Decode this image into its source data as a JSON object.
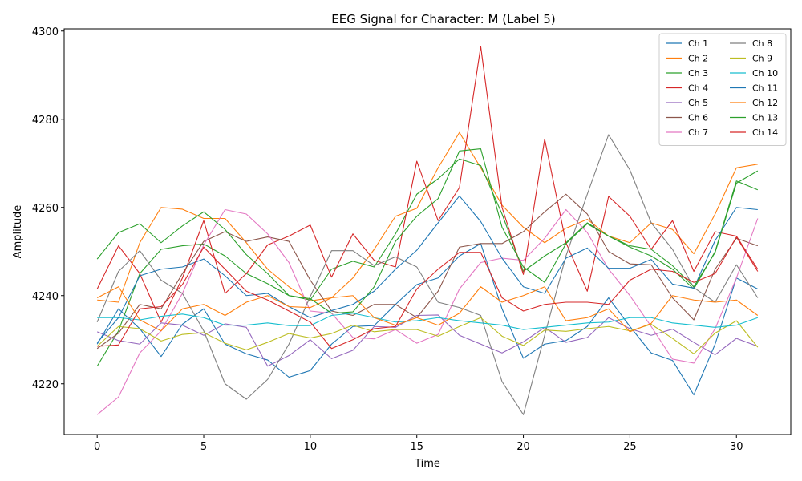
{
  "chart_data": {
    "type": "line",
    "title": "EEG Signal for Character: M (Label 5)",
    "xlabel": "Time",
    "ylabel": "Amplitude",
    "xlim": [
      -1.55,
      32.55
    ],
    "ylim": [
      4208.5,
      4300.5
    ],
    "xticks": [
      0,
      5,
      10,
      15,
      20,
      25,
      30
    ],
    "yticks": [
      4220,
      4240,
      4260,
      4280,
      4300
    ],
    "grid": false,
    "legend": {
      "position": "top-right",
      "columns": 2
    },
    "x": [
      0,
      1,
      2,
      3,
      4,
      5,
      6,
      7,
      8,
      9,
      10,
      11,
      12,
      13,
      14,
      15,
      16,
      17,
      18,
      19,
      20,
      21,
      22,
      23,
      24,
      25,
      26,
      27,
      28,
      29,
      30,
      31
    ],
    "series": [
      {
        "name": "Ch 1",
        "color": "#1f77b4",
        "values": [
          4229.0,
          4237.0,
          4232.5,
          4226.2,
          4233.5,
          4237.0,
          4229.0,
          4226.8,
          4225.4,
          4221.5,
          4223.0,
          4229.0,
          4233.0,
          4233.2,
          4238.0,
          4242.5,
          4244.0,
          4249.0,
          4251.8,
          4237.0,
          4225.8,
          4229.0,
          4229.8,
          4233.0,
          4239.5,
          4233.0,
          4227.0,
          4225.3,
          4217.5,
          4229.0,
          4244.0,
          4241.5
        ]
      },
      {
        "name": "Ch 2",
        "color": "#ff7f0e",
        "values": [
          4239.0,
          4238.5,
          4252.0,
          4260.0,
          4259.6,
          4257.5,
          4257.5,
          4252.0,
          4246.0,
          4242.0,
          4238.8,
          4239.5,
          4244.0,
          4250.5,
          4258.0,
          4259.8,
          4269.0,
          4277.0,
          4269.0,
          4260.5,
          4255.5,
          4252.0,
          4255.3,
          4257.3,
          4253.5,
          4252.0,
          4256.5,
          4255.0,
          4249.5,
          4258.5,
          4269.0,
          4269.8
        ]
      },
      {
        "name": "Ch 3",
        "color": "#2ca02c",
        "values": [
          4224.0,
          4232.0,
          4245.0,
          4250.5,
          4251.3,
          4251.7,
          4249.0,
          4245.0,
          4242.7,
          4240.0,
          4239.0,
          4246.0,
          4247.8,
          4246.5,
          4254.0,
          4263.0,
          4266.5,
          4271.0,
          4269.5,
          4258.5,
          4245.5,
          4249.0,
          4252.0,
          4256.5,
          4253.5,
          4251.0,
          4249.0,
          4246.0,
          4241.5,
          4250.0,
          4266.0,
          4264.0
        ]
      },
      {
        "name": "Ch 4",
        "color": "#d62728",
        "values": [
          4241.5,
          4251.3,
          4245.0,
          4234.0,
          4244.0,
          4257.0,
          4240.5,
          4245.0,
          4251.5,
          4253.5,
          4256.0,
          4244.2,
          4254.0,
          4248.0,
          4246.5,
          4270.5,
          4257.0,
          4264.5,
          4296.5,
          4260.0,
          4244.8,
          4275.5,
          4252.0,
          4241.0,
          4262.5,
          4258.0,
          4250.5,
          4257.0,
          4245.5,
          4254.5,
          4253.5,
          4246.0
        ]
      },
      {
        "name": "Ch 5",
        "color": "#9467bd",
        "values": [
          4231.8,
          4229.8,
          4229.0,
          4233.8,
          4233.3,
          4231.0,
          4233.6,
          4232.8,
          4224.0,
          4226.4,
          4230.0,
          4225.7,
          4227.6,
          4233.0,
          4232.8,
          4235.5,
          4235.6,
          4231.0,
          4229.0,
          4227.0,
          4229.5,
          4232.8,
          4229.4,
          4230.5,
          4235.0,
          4232.5,
          4231.0,
          4232.4,
          4229.4,
          4226.6,
          4230.3,
          4228.5
        ]
      },
      {
        "name": "Ch 6",
        "color": "#8c564b",
        "values": [
          4228.0,
          4231.5,
          4238.0,
          4237.0,
          4245.0,
          4252.3,
          4254.5,
          4252.3,
          4253.3,
          4252.3,
          4243.5,
          4236.5,
          4235.5,
          4238.0,
          4238.0,
          4235.0,
          4241.0,
          4251.0,
          4251.8,
          4251.8,
          4254.5,
          4259.0,
          4263.0,
          4258.5,
          4250.0,
          4247.2,
          4247.0,
          4239.5,
          4234.5,
          4246.0,
          4253.0,
          4251.3
        ]
      },
      {
        "name": "Ch 7",
        "color": "#e377c2",
        "values": [
          4213.0,
          4217.0,
          4227.0,
          4232.0,
          4240.5,
          4251.5,
          4259.5,
          4258.5,
          4254.0,
          4247.5,
          4236.5,
          4236.0,
          4230.5,
          4230.2,
          4232.3,
          4229.2,
          4231.2,
          4241.5,
          4247.5,
          4248.5,
          4248.0,
          4253.0,
          4259.5,
          4254.3,
          4246.0,
          4240.0,
          4233.0,
          4225.6,
          4224.7,
          4232.5,
          4244.0,
          4257.5
        ]
      },
      {
        "name": "Ch 8",
        "color": "#7f7f7f",
        "values": [
          4234.0,
          4245.5,
          4250.2,
          4243.5,
          4240.5,
          4232.0,
          4220.0,
          4216.5,
          4221.0,
          4229.0,
          4239.8,
          4250.2,
          4250.2,
          4246.8,
          4248.8,
          4246.5,
          4238.5,
          4237.3,
          4235.5,
          4220.5,
          4213.0,
          4231.0,
          4249.0,
          4263.0,
          4276.5,
          4268.5,
          4256.5,
          4250.5,
          4241.8,
          4238.5,
          4247.0,
          4239.5
        ]
      },
      {
        "name": "Ch 9",
        "color": "#bcbd22",
        "values": [
          4228.5,
          4233.0,
          4232.5,
          4229.7,
          4231.2,
          4231.6,
          4229.2,
          4227.7,
          4229.4,
          4231.4,
          4230.4,
          4231.4,
          4233.3,
          4231.8,
          4232.3,
          4232.3,
          4230.8,
          4233.0,
          4235.0,
          4230.8,
          4228.7,
          4232.2,
          4231.9,
          4232.5,
          4233.0,
          4232.0,
          4233.5,
          4230.3,
          4226.8,
          4231.5,
          4234.3,
          4228.3
        ]
      },
      {
        "name": "Ch 10",
        "color": "#17becf",
        "values": [
          4235.0,
          4235.0,
          4234.5,
          4235.3,
          4235.8,
          4235.0,
          4233.3,
          4233.3,
          4233.8,
          4233.2,
          4233.2,
          4235.5,
          4236.0,
          4235.0,
          4234.0,
          4234.3,
          4235.0,
          4234.3,
          4233.8,
          4233.3,
          4232.3,
          4232.8,
          4233.3,
          4233.8,
          4234.0,
          4235.0,
          4235.0,
          4233.8,
          4233.3,
          4232.8,
          4233.3,
          4235.0
        ]
      },
      {
        "name": "Ch 11",
        "color": "#1f77b4",
        "values": [
          4229.3,
          4235.0,
          4244.5,
          4246.0,
          4246.5,
          4248.3,
          4244.5,
          4240.0,
          4240.5,
          4237.5,
          4235.0,
          4236.6,
          4238.0,
          4241.0,
          4246.0,
          4250.3,
          4256.5,
          4262.6,
          4256.8,
          4248.5,
          4242.0,
          4240.5,
          4248.5,
          4250.8,
          4246.2,
          4246.2,
          4248.2,
          4242.6,
          4241.7,
          4252.5,
          4260.0,
          4259.5
        ]
      },
      {
        "name": "Ch 12",
        "color": "#ff7f0e",
        "values": [
          4239.5,
          4242.0,
          4234.5,
          4232.0,
          4237.0,
          4238.0,
          4235.5,
          4238.5,
          4240.0,
          4237.5,
          4237.3,
          4239.5,
          4240.0,
          4235.0,
          4233.3,
          4235.0,
          4233.3,
          4236.0,
          4242.0,
          4238.5,
          4240.0,
          4242.0,
          4234.3,
          4235.0,
          4237.0,
          4231.8,
          4233.7,
          4240.0,
          4239.0,
          4238.5,
          4239.0,
          4235.5
        ]
      },
      {
        "name": "Ch 13",
        "color": "#2ca02c",
        "values": [
          4248.3,
          4254.3,
          4256.3,
          4252.0,
          4255.8,
          4259.0,
          4255.0,
          4249.3,
          4245.0,
          4240.0,
          4239.3,
          4236.0,
          4236.3,
          4242.0,
          4252.3,
          4258.0,
          4262.0,
          4272.8,
          4273.3,
          4255.5,
          4246.5,
          4243.0,
          4251.8,
          4256.3,
          4253.5,
          4251.3,
          4250.5,
          4246.8,
          4242.0,
          4249.8,
          4265.5,
          4268.3
        ]
      },
      {
        "name": "Ch 14",
        "color": "#d62728",
        "values": [
          4228.5,
          4228.8,
          4237.0,
          4237.5,
          4242.5,
          4251.0,
          4246.0,
          4241.0,
          4239.0,
          4236.5,
          4234.0,
          4228.0,
          4230.0,
          4232.5,
          4233.0,
          4241.5,
          4246.0,
          4249.8,
          4249.8,
          4239.5,
          4236.5,
          4238.0,
          4238.5,
          4238.5,
          4238.0,
          4243.5,
          4246.0,
          4245.5,
          4243.0,
          4245.0,
          4253.3,
          4245.5
        ]
      }
    ]
  }
}
